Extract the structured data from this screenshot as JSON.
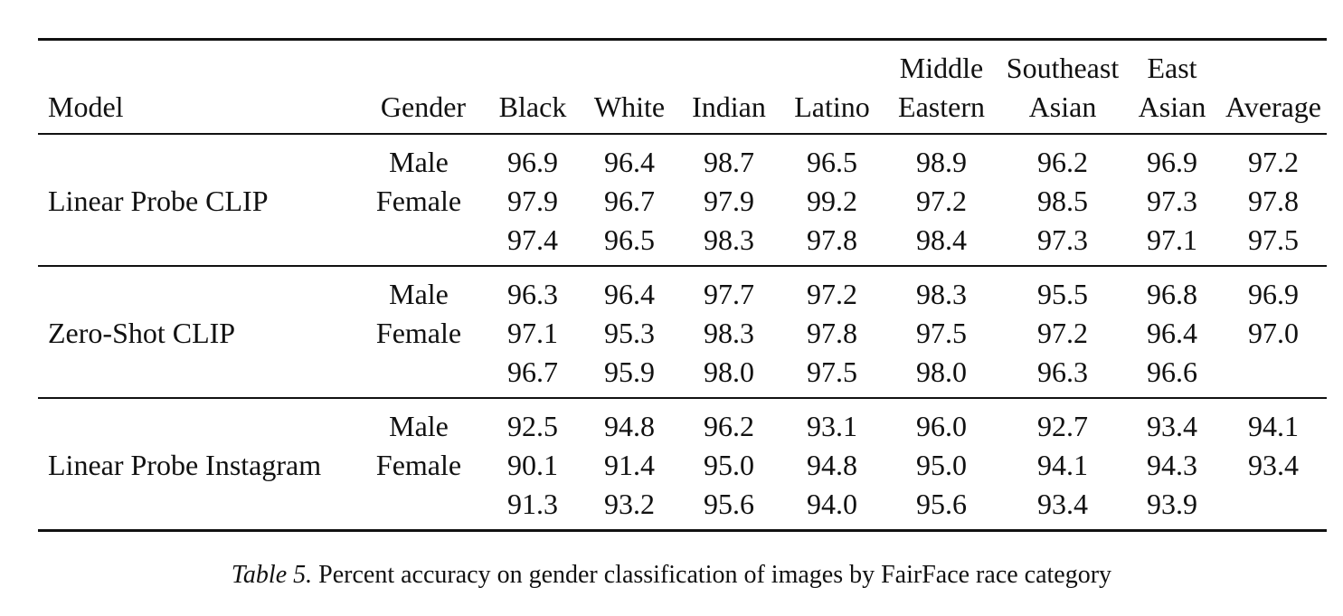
{
  "table": {
    "headers": {
      "model": "Model",
      "gender": "Gender",
      "black": "Black",
      "white": "White",
      "indian": "Indian",
      "latino": "Latino",
      "middle_eastern": [
        "Middle",
        "Eastern"
      ],
      "southeast_asian": [
        "Southeast",
        "Asian"
      ],
      "east_asian": [
        "East",
        "Asian"
      ],
      "average": "Average"
    },
    "groups": [
      {
        "model": "Linear Probe CLIP",
        "rows": [
          {
            "gender": "Male",
            "values": [
              "96.9",
              "96.4",
              "98.7",
              "96.5",
              "98.9",
              "96.2",
              "96.9"
            ],
            "average": "97.2"
          },
          {
            "gender": "Female",
            "values": [
              "97.9",
              "96.7",
              "97.9",
              "99.2",
              "97.2",
              "98.5",
              "97.3"
            ],
            "average": "97.8"
          },
          {
            "gender": "",
            "values": [
              "97.4",
              "96.5",
              "98.3",
              "97.8",
              "98.4",
              "97.3",
              "97.1"
            ],
            "average": "97.5"
          }
        ]
      },
      {
        "model": "Zero-Shot CLIP",
        "rows": [
          {
            "gender": "Male",
            "values": [
              "96.3",
              "96.4",
              "97.7",
              "97.2",
              "98.3",
              "95.5",
              "96.8"
            ],
            "average": "96.9"
          },
          {
            "gender": "Female",
            "values": [
              "97.1",
              "95.3",
              "98.3",
              "97.8",
              "97.5",
              "97.2",
              "96.4"
            ],
            "average": "97.0"
          },
          {
            "gender": "",
            "values": [
              "96.7",
              "95.9",
              "98.0",
              "97.5",
              "98.0",
              "96.3",
              "96.6"
            ],
            "average": ""
          }
        ]
      },
      {
        "model": "Linear Probe Instagram",
        "rows": [
          {
            "gender": "Male",
            "values": [
              "92.5",
              "94.8",
              "96.2",
              "93.1",
              "96.0",
              "92.7",
              "93.4"
            ],
            "average": "94.1"
          },
          {
            "gender": "Female",
            "values": [
              "90.1",
              "91.4",
              "95.0",
              "94.8",
              "95.0",
              "94.1",
              "94.3"
            ],
            "average": "93.4"
          },
          {
            "gender": "",
            "values": [
              "91.3",
              "93.2",
              "95.6",
              "94.0",
              "95.6",
              "93.4",
              "93.9"
            ],
            "average": ""
          }
        ]
      }
    ]
  },
  "caption": {
    "label": "Table 5.",
    "text": "Percent accuracy on gender classification of images by FairFace race category"
  }
}
